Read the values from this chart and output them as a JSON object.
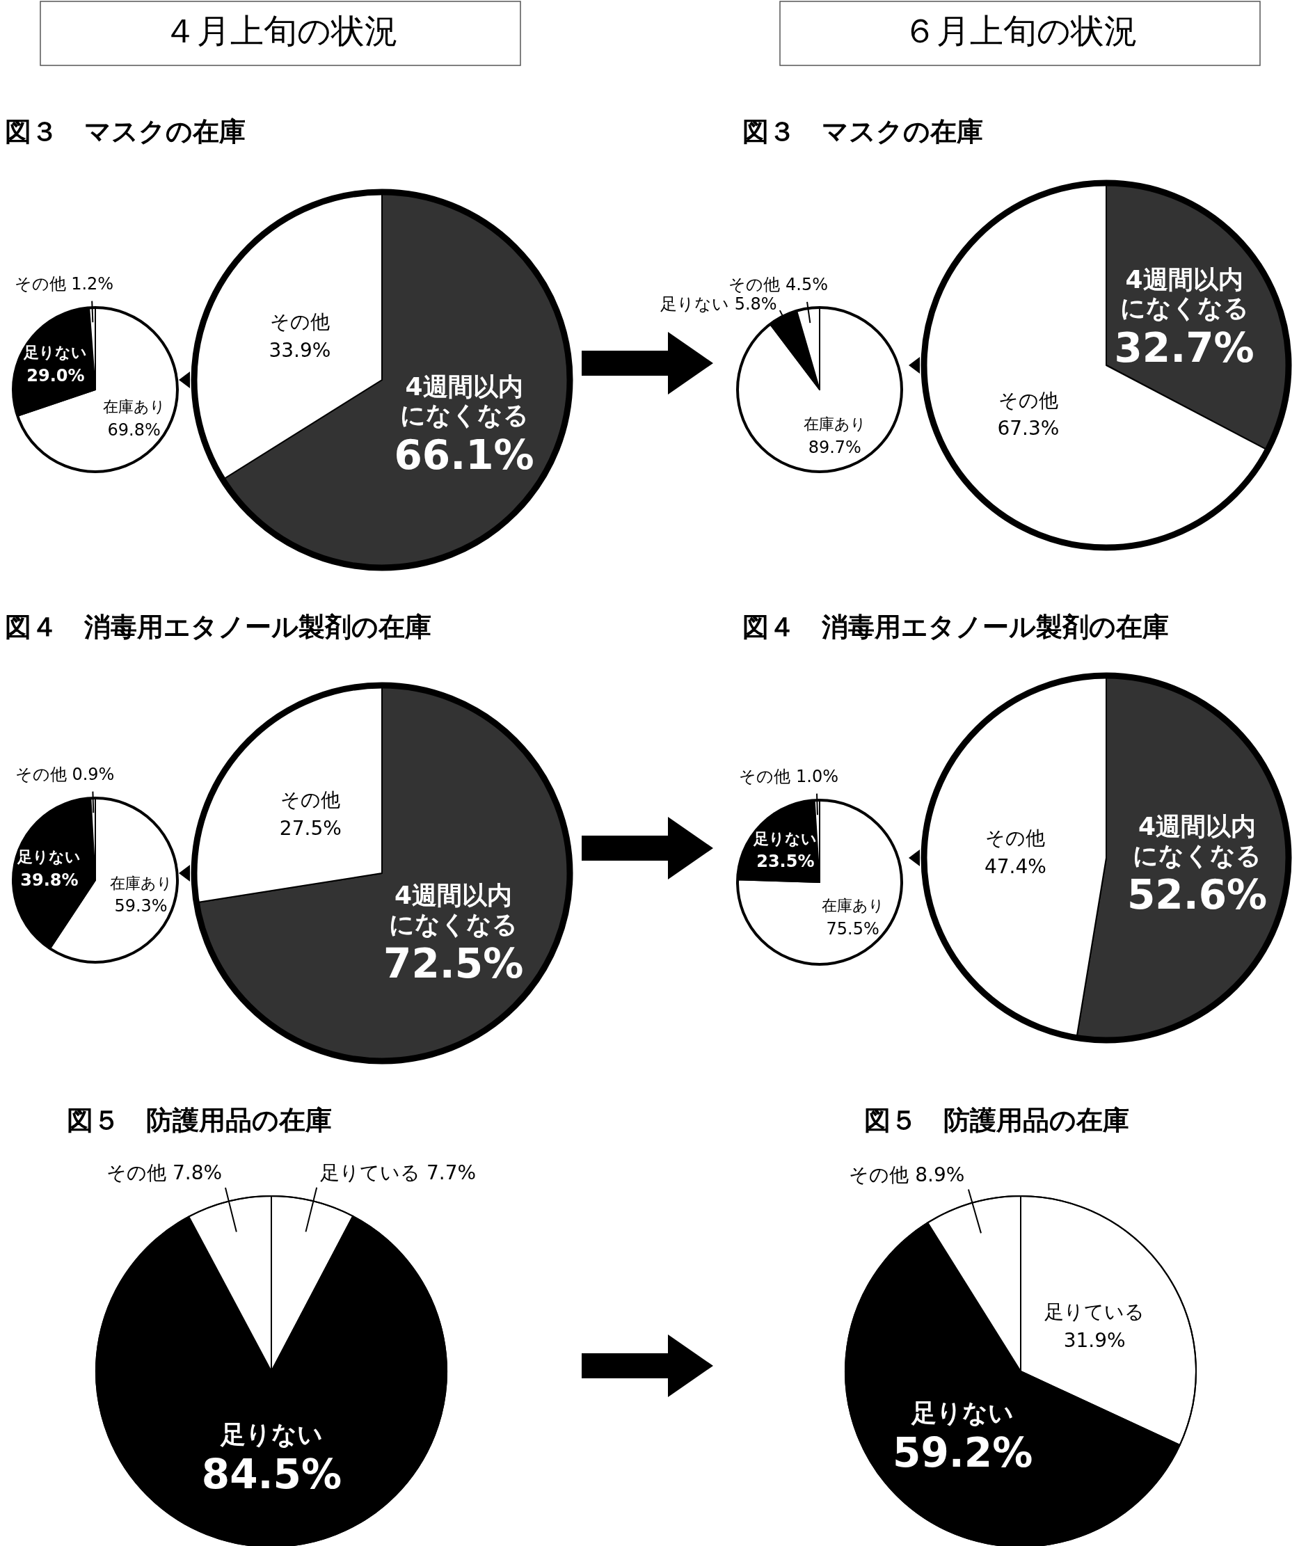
{
  "chart_data": [
    {
      "type": "pie",
      "title": "図３　マスクの在庫",
      "annotations": [
        "４月上旬の状況"
      ],
      "categories": [
        "在庫あり",
        "足りない",
        "その他"
      ],
      "values": [
        69.8,
        29.0,
        1.2
      ],
      "colors": [
        "#ffffff",
        "#000000",
        "#ffffff"
      ],
      "value_labels": [
        "69.8%",
        "29.0%",
        "1.2%"
      ]
    },
    {
      "type": "pie",
      "categories": [
        "4週間以内になくなる",
        "その他"
      ],
      "values": [
        66.1,
        33.9
      ],
      "colors": [
        "#333333",
        "#ffffff"
      ],
      "value_labels": [
        "66.1%",
        "33.9%"
      ]
    },
    {
      "type": "pie",
      "title": "図３　マスクの在庫",
      "annotations": [
        "６月上旬の状況"
      ],
      "categories": [
        "在庫あり",
        "足りない",
        "その他"
      ],
      "values": [
        89.7,
        5.8,
        4.5
      ],
      "colors": [
        "#ffffff",
        "#000000",
        "#ffffff"
      ],
      "value_labels": [
        "89.7%",
        "5.8%",
        "4.5%"
      ]
    },
    {
      "type": "pie",
      "categories": [
        "4週間以内になくなる",
        "その他"
      ],
      "values": [
        32.7,
        67.3
      ],
      "colors": [
        "#333333",
        "#ffffff"
      ],
      "value_labels": [
        "32.7%",
        "67.3%"
      ]
    },
    {
      "type": "pie",
      "title": "図４　消毒用エタノール製剤の在庫",
      "categories": [
        "在庫あり",
        "足りない",
        "その他"
      ],
      "values": [
        59.3,
        39.8,
        0.9
      ],
      "colors": [
        "#ffffff",
        "#000000",
        "#ffffff"
      ],
      "value_labels": [
        "59.3%",
        "39.8%",
        "0.9%"
      ]
    },
    {
      "type": "pie",
      "categories": [
        "4週間以内になくなる",
        "その他"
      ],
      "values": [
        72.5,
        27.5
      ],
      "colors": [
        "#333333",
        "#ffffff"
      ],
      "value_labels": [
        "72.5%",
        "27.5%"
      ]
    },
    {
      "type": "pie",
      "title": "図４　消毒用エタノール製剤の在庫",
      "categories": [
        "在庫あり",
        "足りない",
        "その他"
      ],
      "values": [
        75.5,
        23.5,
        1.0
      ],
      "colors": [
        "#ffffff",
        "#000000",
        "#ffffff"
      ],
      "value_labels": [
        "75.5%",
        "23.5%",
        "1.0%"
      ]
    },
    {
      "type": "pie",
      "categories": [
        "4週間以内になくなる",
        "その他"
      ],
      "values": [
        52.6,
        47.4
      ],
      "colors": [
        "#333333",
        "#ffffff"
      ],
      "value_labels": [
        "52.6%",
        "47.4%"
      ]
    },
    {
      "type": "pie",
      "title": "図５　防護用品の在庫",
      "categories": [
        "足りている",
        "足りない",
        "その他"
      ],
      "values": [
        7.7,
        84.5,
        7.8
      ],
      "colors": [
        "#ffffff",
        "#000000",
        "#ffffff"
      ],
      "value_labels": [
        "7.7%",
        "84.5%",
        "7.8%"
      ]
    },
    {
      "type": "pie",
      "title": "図５　防護用品の在庫",
      "categories": [
        "足りている",
        "足りない",
        "その他"
      ],
      "values": [
        31.9,
        59.2,
        8.9
      ],
      "colors": [
        "#ffffff",
        "#000000",
        "#ffffff"
      ],
      "value_labels": [
        "31.9%",
        "59.2%",
        "8.9%"
      ]
    }
  ]
}
